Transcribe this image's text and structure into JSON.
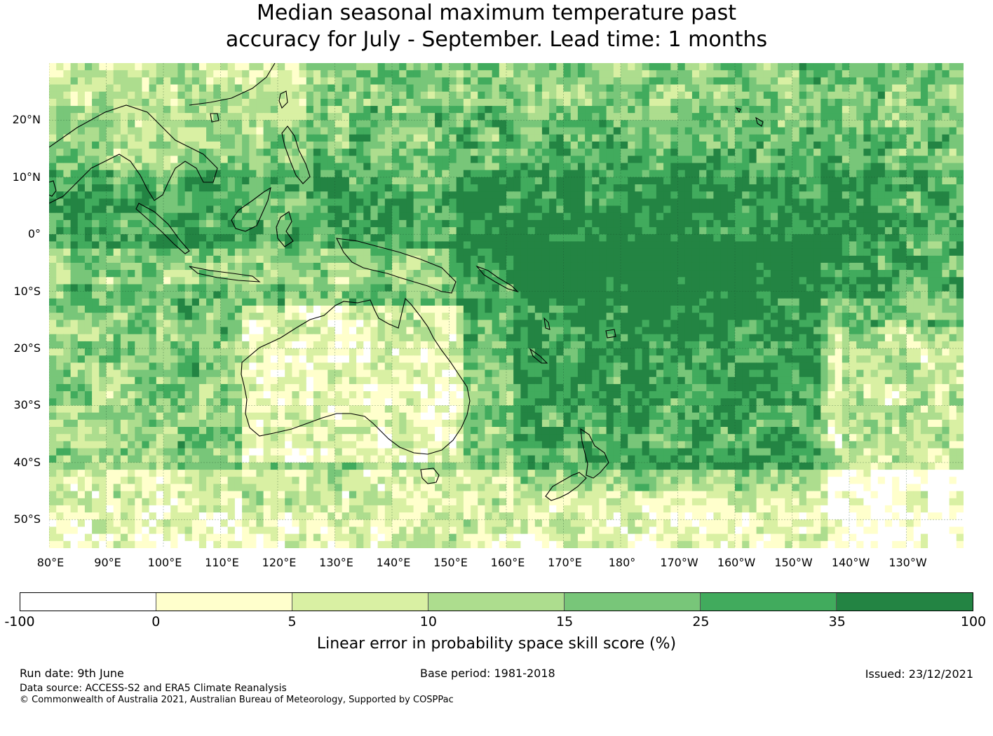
{
  "title_line1": "Median seasonal maximum temperature past",
  "title_line2": "accuracy for July - September. Lead time: 1 months",
  "map": {
    "lat_labels": [
      "20°N",
      "10°N",
      "0°",
      "10°S",
      "20°S",
      "30°S",
      "40°S",
      "50°S"
    ],
    "lon_labels": [
      "80°E",
      "90°E",
      "100°E",
      "110°E",
      "120°E",
      "130°E",
      "140°E",
      "150°E",
      "160°E",
      "170°E",
      "180°",
      "170°W",
      "160°W",
      "150°W",
      "140°W",
      "130°W"
    ],
    "extent": {
      "lon_min": 80,
      "lon_max": 240,
      "lat_min": -55,
      "lat_max": 30
    },
    "field_description_values": {
      "dominant_level_equatorial_pacific": "35-100",
      "dominant_level_australia_interior": "5-15",
      "dominant_level_southern_ocean": "0-15"
    }
  },
  "colorbar": {
    "ticks": [
      "-100",
      "0",
      "5",
      "10",
      "15",
      "25",
      "35",
      "100"
    ],
    "colors": [
      "#ffffff",
      "#ffffcc",
      "#d9f0a3",
      "#addd8e",
      "#78c679",
      "#41ab5d",
      "#238443"
    ],
    "label": "Linear error in probability space skill score (%)"
  },
  "footer": {
    "run_date": "Run date: 9th June",
    "base_period": "Base period: 1981-2018",
    "issued": "Issued: 23/12/2021",
    "data_source": "Data source: ACCESS-S2 and ERA5 Climate Reanalysis",
    "copyright": "© Commonwealth of Australia 2021, Australian Bureau of Meteorology, Supported by COSPPac"
  }
}
